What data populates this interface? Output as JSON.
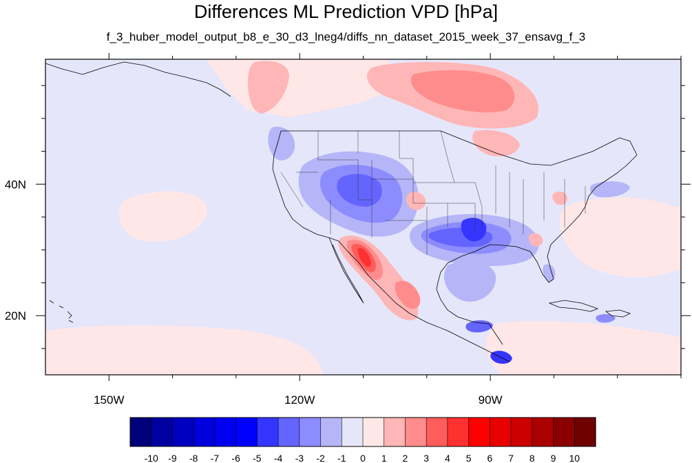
{
  "title": "Differences ML Prediction VPD [hPa]",
  "subtitle": "f_3_huber_model_output_b8_e_30_d3_lneg4/diffs_nn_dataset_2015_week_37_ensavg_f_3",
  "map": {
    "lon_range": [
      -160,
      -60
    ],
    "lat_range": [
      11,
      59
    ],
    "x_tick_labels": [
      {
        "lon": -150,
        "label": "150W"
      },
      {
        "lon": -120,
        "label": "120W"
      },
      {
        "lon": -90,
        "label": "90W"
      }
    ],
    "y_tick_labels": [
      {
        "lat": 40,
        "label": "40N"
      },
      {
        "lat": 20,
        "label": "20N"
      }
    ],
    "background_value_color": "#e6e6fa"
  },
  "colorbar": {
    "labels": [
      "-10",
      "-9",
      "-8",
      "-7",
      "-6",
      "-5",
      "-4",
      "-3",
      "-2",
      "-1",
      "0",
      "1",
      "2",
      "3",
      "4",
      "5",
      "6",
      "7",
      "8",
      "9",
      "10"
    ],
    "colors": [
      "#00007a",
      "#0000a0",
      "#0000c0",
      "#0000dc",
      "#0000f0",
      "#0000ff",
      "#3535ff",
      "#6464ff",
      "#8c8cff",
      "#b5b5f8",
      "#e6e6fa",
      "#ffe7e7",
      "#ffb6b6",
      "#ff8c8c",
      "#ff5c5c",
      "#ff3030",
      "#ff0000",
      "#e80000",
      "#cc0000",
      "#aa0000",
      "#8a0000",
      "#6e0000"
    ]
  }
}
